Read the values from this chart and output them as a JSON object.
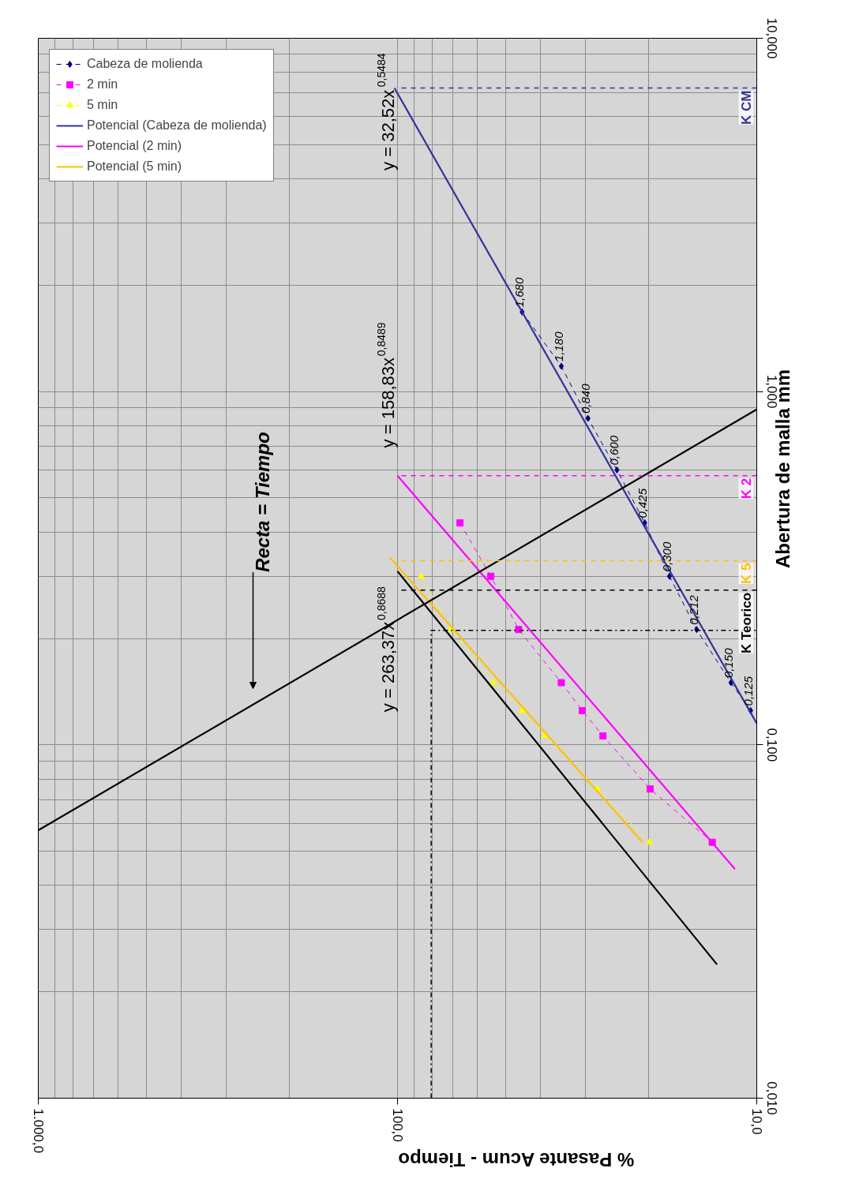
{
  "chart_data": {
    "type": "line",
    "xlabel": "% Pasante Acum - Tiempo",
    "ylabel": "Abertura de malla mm",
    "log": "xy",
    "grid": true,
    "legend": "top left",
    "xlim": [
      1000,
      10
    ],
    "ylim": [
      0.01,
      10
    ],
    "xticks": [
      {
        "value": 1000,
        "label": "1.000,0"
      },
      {
        "value": 100,
        "label": "100,0"
      },
      {
        "value": 10,
        "label": "10,0"
      }
    ],
    "yticks": [
      {
        "value": 0.01,
        "label": "0,010"
      },
      {
        "value": 0.1,
        "label": "0,100"
      },
      {
        "value": 1,
        "label": "1,000"
      },
      {
        "value": 10,
        "label": "10,000"
      }
    ],
    "series": [
      {
        "name": "Cabeza de molienda",
        "color": "#000080",
        "marker": "diamond",
        "line_style": "dashed",
        "x": [
          45,
          35,
          29.5,
          24.5,
          20.5,
          17.5,
          14.7,
          11.8,
          10.4
        ],
        "values": [
          1.68,
          1.18,
          0.84,
          0.6,
          0.425,
          0.3,
          0.212,
          0.15,
          0.125
        ],
        "value_labels": [
          "1,680",
          "1,180",
          "0,840",
          "0,600",
          "0,425",
          "0,300",
          "0,212",
          "0,150",
          "0,125"
        ]
      },
      {
        "name": "2 min",
        "color": "#ff00ff",
        "marker": "square",
        "line_style": "dashed",
        "x": [
          67,
          55,
          46,
          35,
          30.6,
          26.8,
          19.8,
          13.3
        ],
        "values": [
          0.425,
          0.3,
          0.212,
          0.15,
          0.125,
          0.106,
          0.075,
          0.053
        ]
      },
      {
        "name": "5 min",
        "color": "#ffff00",
        "marker": "triangle",
        "line_style": "dashed",
        "x": [
          86,
          71,
          54,
          45,
          39,
          27.7,
          19.9
        ],
        "values": [
          0.3,
          0.212,
          0.15,
          0.125,
          0.106,
          0.075,
          0.053
        ]
      },
      {
        "name": "Potencial (Cabeza de molienda)",
        "color": "#333399",
        "marker": "none",
        "line_style": "solid",
        "x": [
          10,
          102
        ],
        "values": [
          0.115,
          7.23
        ]
      },
      {
        "name": "Potencial (2 min)",
        "color": "#ff00ff",
        "marker": "none",
        "line_style": "solid",
        "x": [
          11.5,
          100
        ],
        "values": [
          0.0445,
          0.578
        ]
      },
      {
        "name": "Potencial (5 min)",
        "color": "#ffc000",
        "marker": "none",
        "line_style": "solid",
        "x": [
          20.8,
          105
        ],
        "values": [
          0.053,
          0.339
        ]
      },
      {
        "color": "#000000",
        "marker": "none",
        "line_style": "solid",
        "x": [
          1000,
          10
        ],
        "values": [
          0.0573,
          0.89
        ]
      },
      {
        "color": "#000000",
        "marker": "none",
        "line_style": "solid",
        "x": [
          12.9,
          100
        ],
        "values": [
          0.0239,
          0.31
        ]
      },
      {
        "name": "K CM",
        "color": "#333399",
        "marker": "none",
        "line_style": "dashed",
        "x": [
          10,
          100
        ],
        "values": [
          7.23,
          7.23
        ]
      },
      {
        "name": "K 2",
        "color": "#ff00ff",
        "marker": "none",
        "line_style": "dashed",
        "x": [
          10,
          100
        ],
        "values": [
          0.578,
          0.578
        ]
      },
      {
        "name": "K 5",
        "color": "#ffc000",
        "marker": "none",
        "line_style": "dashed",
        "x": [
          10,
          100
        ],
        "values": [
          0.332,
          0.332
        ]
      },
      {
        "name": "K Teorico",
        "color": "#000000",
        "marker": "none",
        "line_style": "dashed",
        "x": [
          10,
          100
        ],
        "values": [
          0.274,
          0.274
        ]
      },
      {
        "color": "#000000",
        "marker": "none",
        "line_style": "dashdot",
        "x": [
          80.6,
          80.6,
          10
        ],
        "values": [
          0.01,
          0.211,
          0.211
        ]
      }
    ],
    "annotations": [
      "y = 32,52x$^{0,5484}$",
      "y = 158,83x$^{0,8489}$",
      "y = 263,37x$^{0,8688}$",
      "Recta = Tiempo"
    ]
  }
}
